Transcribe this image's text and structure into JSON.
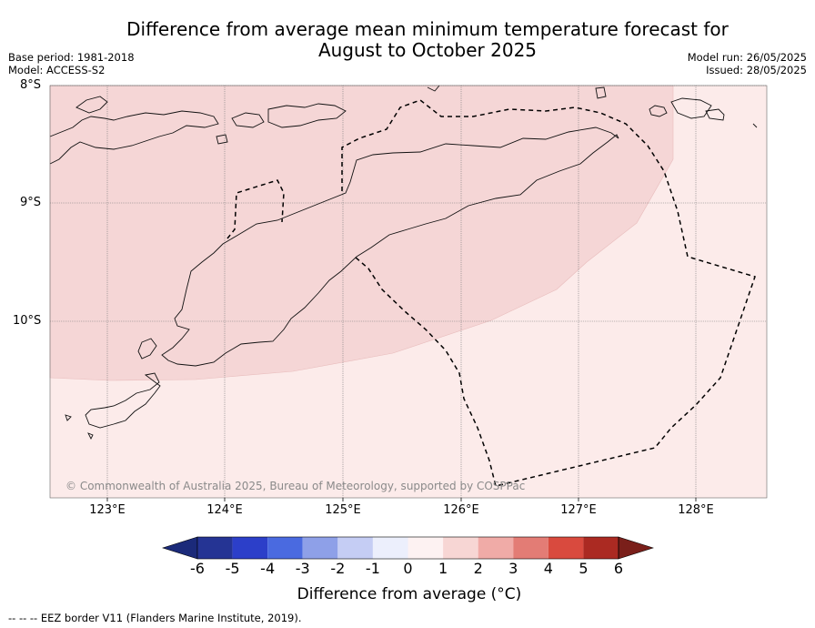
{
  "header": {
    "title_line1": "Difference from average mean minimum temperature forecast for",
    "title_line2": "August to October 2025",
    "base_period": "Base period: 1981-2018",
    "model": "Model: ACCESS-S2",
    "model_run": "Model run: 26/05/2025",
    "issued": "Issued: 28/05/2025"
  },
  "map": {
    "lat_labels": [
      "8°S",
      "9°S",
      "10°S"
    ],
    "lon_labels": [
      "123°E",
      "124°E",
      "125°E",
      "126°E",
      "127°E",
      "128°E"
    ],
    "copyright": "© Commonwealth of Australia 2025, Bureau of Meteorology, supported by COSPPac",
    "anomaly_zones": [
      {
        "category": "1 to 2",
        "color": "#f5d6d6"
      },
      {
        "category": "0 to 1",
        "color": "#fcebea"
      }
    ]
  },
  "colorbar": {
    "ticks": [
      "-6",
      "-5",
      "-4",
      "-3",
      "-2",
      "-1",
      "0",
      "1",
      "2",
      "3",
      "4",
      "5",
      "6"
    ],
    "colors": [
      "#253494",
      "#2c3fc9",
      "#4a6ae0",
      "#8ea0e8",
      "#c5cdf4",
      "#eceffc",
      "#fdf2f2",
      "#f7d6d4",
      "#f0aba7",
      "#e37c75",
      "#d94a3e",
      "#ab2a22"
    ],
    "low_extend_color": "#1b2a7a",
    "high_extend_color": "#7a1f1a",
    "label": "Difference from average (°C)"
  },
  "footer": {
    "legend_text": "--  --  -- EEZ border V11 (Flanders Marine Institute, 2019)."
  }
}
